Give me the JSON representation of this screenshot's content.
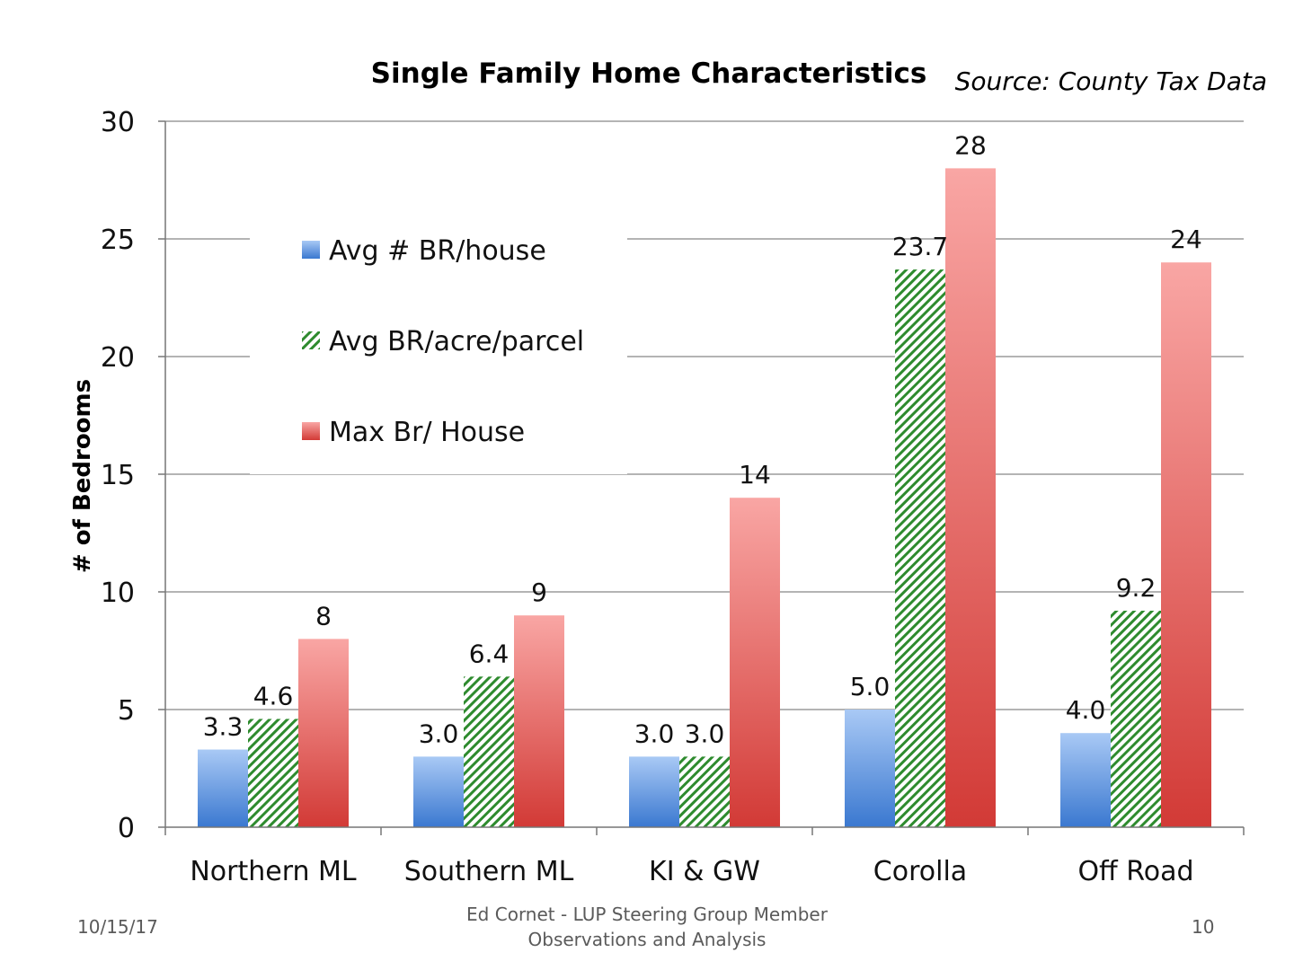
{
  "chart_data": {
    "type": "bar",
    "title": "Single Family Home Characteristics",
    "source": "Source: County Tax Data",
    "ylabel": "# of Bedrooms",
    "xlabel": "",
    "ylim": [
      0,
      30
    ],
    "yticks": [
      0,
      5,
      10,
      15,
      20,
      25,
      30
    ],
    "grid": true,
    "legend_position": "upper-left inside plot",
    "categories": [
      "Northern ML",
      "Southern ML",
      "KI & GW",
      "Corolla",
      "Off Road"
    ],
    "series": [
      {
        "name": "Avg # BR/house",
        "style": "blue-gradient",
        "values": [
          3.3,
          3.0,
          3.0,
          5.0,
          4.0
        ],
        "labels": [
          "3.3",
          "3.0",
          "3.0",
          "5.0",
          "4.0"
        ]
      },
      {
        "name": "Avg BR/acre/parcel",
        "style": "green-hatch",
        "values": [
          4.6,
          6.4,
          3.0,
          23.7,
          9.2
        ],
        "labels": [
          "4.6",
          "6.4",
          "3.0",
          "23.7",
          "9.2"
        ]
      },
      {
        "name": "Max Br/ House",
        "style": "red-gradient",
        "values": [
          8,
          9,
          14,
          28,
          24
        ],
        "labels": [
          "8",
          "9",
          "14",
          "28",
          "24"
        ]
      }
    ],
    "colors": {
      "blue_light": "#a9c9f5",
      "blue_dark": "#3a78d0",
      "green": "#2e8b2e",
      "red_light": "#f9a6a4",
      "red_dark": "#d23a36",
      "grid": "#888888",
      "axis": "#777777"
    }
  },
  "footer": {
    "date": "10/15/17",
    "line1": "Ed Cornet - LUP Steering Group Member",
    "line2": "Observations and Analysis",
    "page": "10"
  }
}
